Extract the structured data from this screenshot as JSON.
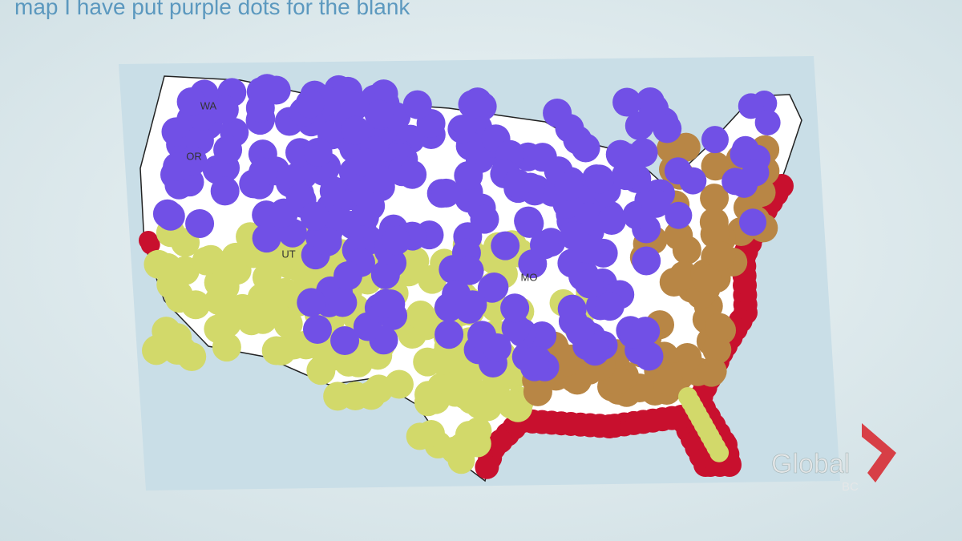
{
  "slide": {
    "caption": "map I have put purple dots for the blank",
    "map": {
      "state_labels": [
        "WA",
        "OR",
        "UT",
        "MO"
      ]
    }
  },
  "watermark": {
    "brand": "Global",
    "region": "BC"
  }
}
